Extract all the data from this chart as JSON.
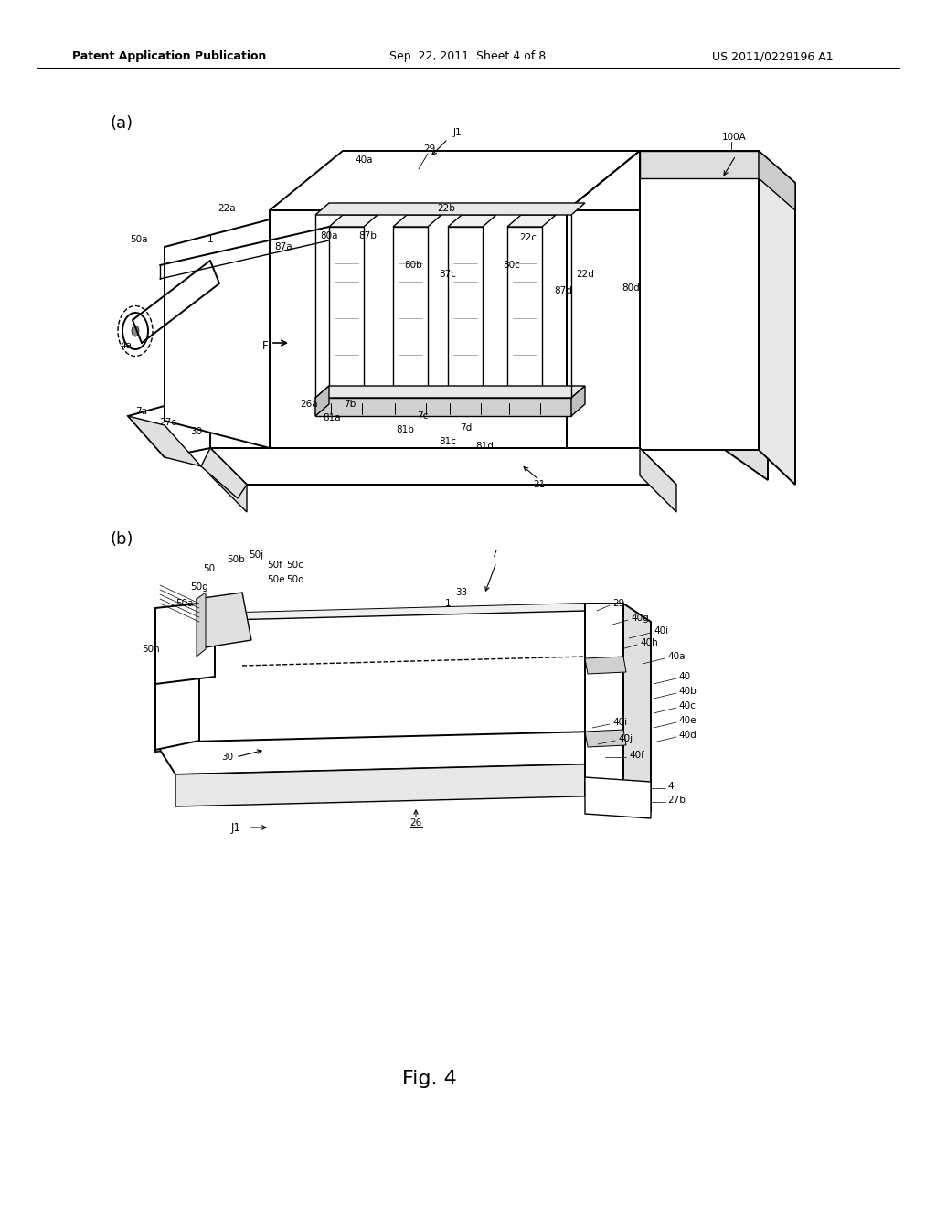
{
  "bg_color": "#ffffff",
  "header_left": "Patent Application Publication",
  "header_center": "Sep. 22, 2011  Sheet 4 of 8",
  "header_right": "US 2011/0229196 A1",
  "fig_label": "Fig. 4",
  "lfs": 7.5
}
